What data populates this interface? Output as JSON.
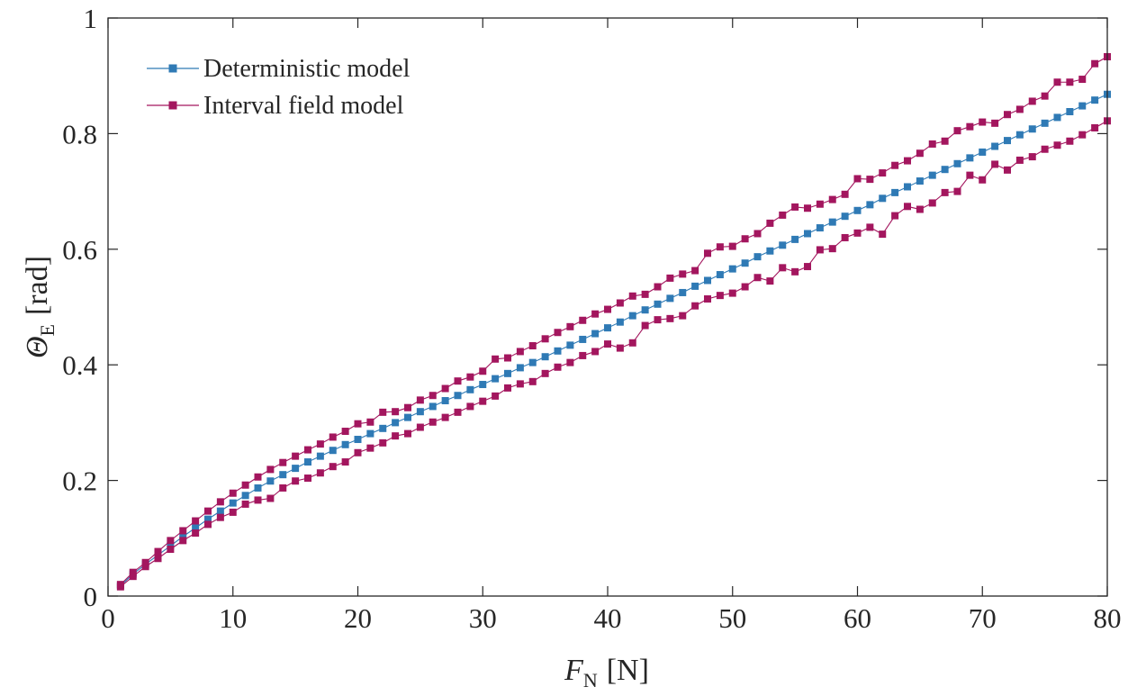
{
  "chart_data": {
    "type": "line",
    "title": "",
    "xlabel": {
      "main": "F",
      "sub": "N",
      "unit": "[N]"
    },
    "ylabel": {
      "main": "Θ",
      "sub": "E",
      "unit": "[rad]"
    },
    "xlim": [
      0,
      80
    ],
    "ylim": [
      0,
      1
    ],
    "xticks": [
      0,
      10,
      20,
      30,
      40,
      50,
      60,
      70,
      80
    ],
    "yticks": [
      0,
      0.2,
      0.4,
      0.6,
      0.8,
      1
    ],
    "xtick_labels": [
      "0",
      "10",
      "20",
      "30",
      "40",
      "50",
      "60",
      "70",
      "80"
    ],
    "ytick_labels": [
      "0",
      "0.2",
      "0.4",
      "0.6",
      "0.8",
      "1"
    ],
    "grid": false,
    "box": true,
    "legend_position": "top-left",
    "legend": [
      {
        "label": "Deterministic model",
        "color": "#2f7ab5"
      },
      {
        "label": "Interval field model",
        "color": "#a3165e"
      }
    ],
    "x": [
      1,
      2,
      3,
      4,
      5,
      6,
      7,
      8,
      9,
      10,
      11,
      12,
      13,
      14,
      15,
      16,
      17,
      18,
      19,
      20,
      21,
      22,
      23,
      24,
      25,
      26,
      27,
      28,
      29,
      30,
      31,
      32,
      33,
      34,
      35,
      36,
      37,
      38,
      39,
      40,
      41,
      42,
      43,
      44,
      45,
      46,
      47,
      48,
      49,
      50,
      51,
      52,
      53,
      54,
      55,
      56,
      57,
      58,
      59,
      60,
      61,
      62,
      63,
      64,
      65,
      66,
      67,
      68,
      69,
      70,
      71,
      72,
      73,
      74,
      75,
      76,
      77,
      78,
      79,
      80
    ],
    "series": [
      {
        "name": "Deterministic model",
        "color": "#2f7ab5",
        "marker": "square",
        "values": [
          0.018,
          0.038,
          0.055,
          0.071,
          0.087,
          0.103,
          0.118,
          0.133,
          0.147,
          0.161,
          0.174,
          0.187,
          0.199,
          0.21,
          0.221,
          0.232,
          0.242,
          0.252,
          0.262,
          0.271,
          0.281,
          0.29,
          0.3,
          0.309,
          0.319,
          0.328,
          0.338,
          0.347,
          0.357,
          0.366,
          0.376,
          0.385,
          0.395,
          0.404,
          0.414,
          0.424,
          0.434,
          0.444,
          0.454,
          0.464,
          0.474,
          0.485,
          0.495,
          0.505,
          0.515,
          0.525,
          0.536,
          0.546,
          0.556,
          0.566,
          0.576,
          0.587,
          0.597,
          0.607,
          0.617,
          0.627,
          0.637,
          0.647,
          0.657,
          0.667,
          0.677,
          0.688,
          0.698,
          0.708,
          0.718,
          0.728,
          0.738,
          0.748,
          0.758,
          0.768,
          0.778,
          0.788,
          0.798,
          0.808,
          0.818,
          0.828,
          0.838,
          0.848,
          0.858,
          0.868
        ]
      },
      {
        "name": "Interval field model",
        "color": "#a3165e",
        "marker": "square",
        "bound": "upper",
        "values": [
          0.02,
          0.041,
          0.058,
          0.077,
          0.096,
          0.113,
          0.13,
          0.147,
          0.163,
          0.178,
          0.192,
          0.206,
          0.219,
          0.231,
          0.242,
          0.253,
          0.263,
          0.275,
          0.285,
          0.298,
          0.301,
          0.318,
          0.319,
          0.326,
          0.339,
          0.347,
          0.359,
          0.372,
          0.379,
          0.389,
          0.41,
          0.412,
          0.423,
          0.433,
          0.445,
          0.456,
          0.466,
          0.477,
          0.488,
          0.496,
          0.507,
          0.519,
          0.522,
          0.535,
          0.55,
          0.557,
          0.563,
          0.593,
          0.604,
          0.605,
          0.618,
          0.627,
          0.645,
          0.659,
          0.673,
          0.671,
          0.678,
          0.686,
          0.695,
          0.722,
          0.721,
          0.732,
          0.745,
          0.753,
          0.766,
          0.782,
          0.787,
          0.805,
          0.812,
          0.82,
          0.818,
          0.833,
          0.842,
          0.856,
          0.865,
          0.889,
          0.889,
          0.894,
          0.921,
          0.933
        ]
      },
      {
        "name": "",
        "color": "#a3165e",
        "marker": "square",
        "bound": "lower",
        "values": [
          0.016,
          0.034,
          0.051,
          0.065,
          0.081,
          0.096,
          0.109,
          0.124,
          0.136,
          0.145,
          0.159,
          0.166,
          0.169,
          0.187,
          0.199,
          0.204,
          0.213,
          0.224,
          0.232,
          0.248,
          0.256,
          0.265,
          0.277,
          0.281,
          0.292,
          0.301,
          0.309,
          0.318,
          0.328,
          0.337,
          0.346,
          0.36,
          0.367,
          0.371,
          0.385,
          0.396,
          0.404,
          0.416,
          0.423,
          0.436,
          0.429,
          0.438,
          0.468,
          0.478,
          0.48,
          0.485,
          0.502,
          0.514,
          0.52,
          0.524,
          0.535,
          0.551,
          0.545,
          0.568,
          0.561,
          0.57,
          0.599,
          0.601,
          0.62,
          0.628,
          0.638,
          0.626,
          0.658,
          0.674,
          0.669,
          0.68,
          0.698,
          0.7,
          0.728,
          0.72,
          0.747,
          0.737,
          0.754,
          0.76,
          0.773,
          0.78,
          0.787,
          0.798,
          0.81,
          0.822
        ]
      }
    ]
  }
}
